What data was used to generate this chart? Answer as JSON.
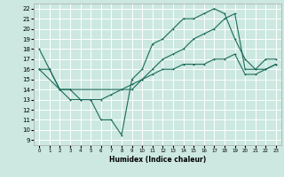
{
  "xlabel": "Humidex (Indice chaleur)",
  "bg_color": "#cce8e0",
  "grid_color": "#ffffff",
  "line_color": "#1a6b5a",
  "xlim": [
    -0.5,
    23.5
  ],
  "ylim": [
    8.5,
    22.5
  ],
  "xticks": [
    0,
    1,
    2,
    3,
    4,
    5,
    6,
    7,
    8,
    9,
    10,
    11,
    12,
    13,
    14,
    15,
    16,
    17,
    18,
    19,
    20,
    21,
    22,
    23
  ],
  "yticks": [
    9,
    10,
    11,
    12,
    13,
    14,
    15,
    16,
    17,
    18,
    19,
    20,
    21,
    22
  ],
  "line1_x": [
    0,
    1,
    2,
    3,
    4,
    5,
    6,
    7,
    8,
    9,
    10,
    11,
    12,
    13,
    14,
    15,
    16,
    17,
    18,
    19,
    20,
    21,
    22,
    23
  ],
  "line1_y": [
    18,
    16,
    14,
    14,
    13,
    13,
    11,
    11,
    9.5,
    15,
    16,
    18.5,
    19,
    20,
    21,
    21,
    21.5,
    22,
    21.5,
    19,
    17,
    16,
    17,
    17
  ],
  "line2_x": [
    0,
    2,
    3,
    9,
    10,
    11,
    12,
    13,
    14,
    15,
    16,
    17,
    18,
    19,
    20,
    21,
    22,
    23
  ],
  "line2_y": [
    16,
    14,
    14,
    14,
    15,
    16,
    17,
    17.5,
    18,
    19,
    19.5,
    20,
    21,
    21.5,
    16,
    16,
    16,
    16.5
  ],
  "line3_x": [
    0,
    1,
    2,
    3,
    4,
    5,
    6,
    7,
    8,
    9,
    10,
    11,
    12,
    13,
    14,
    15,
    16,
    17,
    18,
    19,
    20,
    21,
    22,
    23
  ],
  "line3_y": [
    16,
    16,
    14,
    13,
    13,
    13,
    13,
    13.5,
    14,
    14.5,
    15,
    15.5,
    16,
    16,
    16.5,
    16.5,
    16.5,
    17,
    17,
    17.5,
    15.5,
    15.5,
    16,
    16.5
  ]
}
